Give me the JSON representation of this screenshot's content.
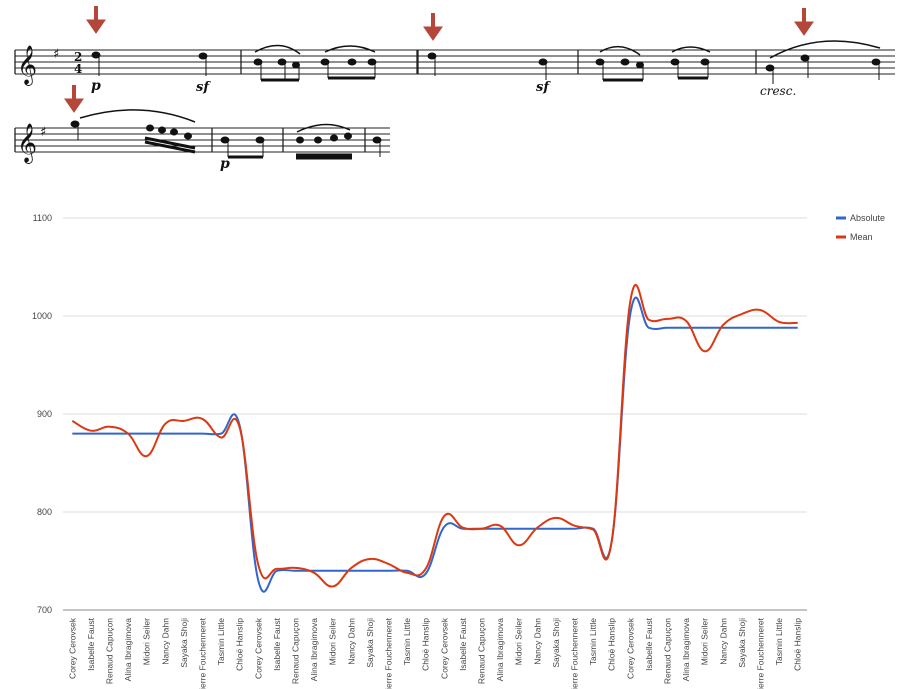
{
  "score": {
    "dynamics": [
      "p",
      "sf",
      "sf",
      "cresc.",
      "p"
    ],
    "arrow_color": "#b5473a"
  },
  "chart_data": {
    "type": "line",
    "categories": [
      "Corey Cerovsek",
      "Isabelle Faust",
      "Renaud Capuçon",
      "Alina Ibragimova",
      "Midori Seiler",
      "Nancy Dahn",
      "Sayaka Shoji",
      "Pierre Fouchenneret",
      "Tasmin Little",
      "Chloë Hanslip",
      "Corey Cerovsek",
      "Isabelle Faust",
      "Renaud Capuçon",
      "Alina Ibragimova",
      "Midori Seiler",
      "Nancy Dahn",
      "Sayaka Shoji",
      "Pierre Fouchenneret",
      "Tasmin Little",
      "Chloë Hanslip",
      "Corey Cerovsek",
      "Isabelle Faust",
      "Renaud Capuçon",
      "Alina Ibragimova",
      "Midori Seiler",
      "Nancy Dahn",
      "Sayaka Shoji",
      "Pierre Fouchenneret",
      "Tasmin Little",
      "Chloë Hanslip",
      "Corey Cerovsek",
      "Isabelle Faust",
      "Renaud Capuçon",
      "Alina Ibragimova",
      "Midori Seiler",
      "Nancy Dahn",
      "Sayaka Shoji",
      "Pierre Fouchenneret",
      "Tasmin Little",
      "Chloë Hanslip"
    ],
    "series": [
      {
        "name": "Absolute",
        "color": "#3366cc",
        "values": [
          880,
          880,
          880,
          880,
          880,
          880,
          880,
          880,
          880,
          888,
          730,
          740,
          740,
          740,
          740,
          740,
          740,
          740,
          740,
          737,
          785,
          783,
          783,
          783,
          783,
          783,
          783,
          783,
          783,
          770,
          1002,
          988,
          988,
          988,
          988,
          988,
          988,
          988,
          988,
          988
        ]
      },
      {
        "name": "Mean",
        "color": "#dc3912",
        "values": [
          893,
          883,
          887,
          880,
          857,
          890,
          893,
          895,
          876,
          886,
          746,
          742,
          743,
          738,
          724,
          743,
          752,
          747,
          738,
          742,
          796,
          784,
          783,
          786,
          766,
          784,
          794,
          786,
          782,
          770,
          1015,
          996,
          997,
          995,
          964,
          991,
          1002,
          1006,
          994,
          993
        ]
      }
    ],
    "ylim": [
      700,
      1100
    ],
    "yticks": [
      700,
      800,
      900,
      1000,
      1100
    ],
    "grid": true,
    "legend_position": "top-right"
  }
}
